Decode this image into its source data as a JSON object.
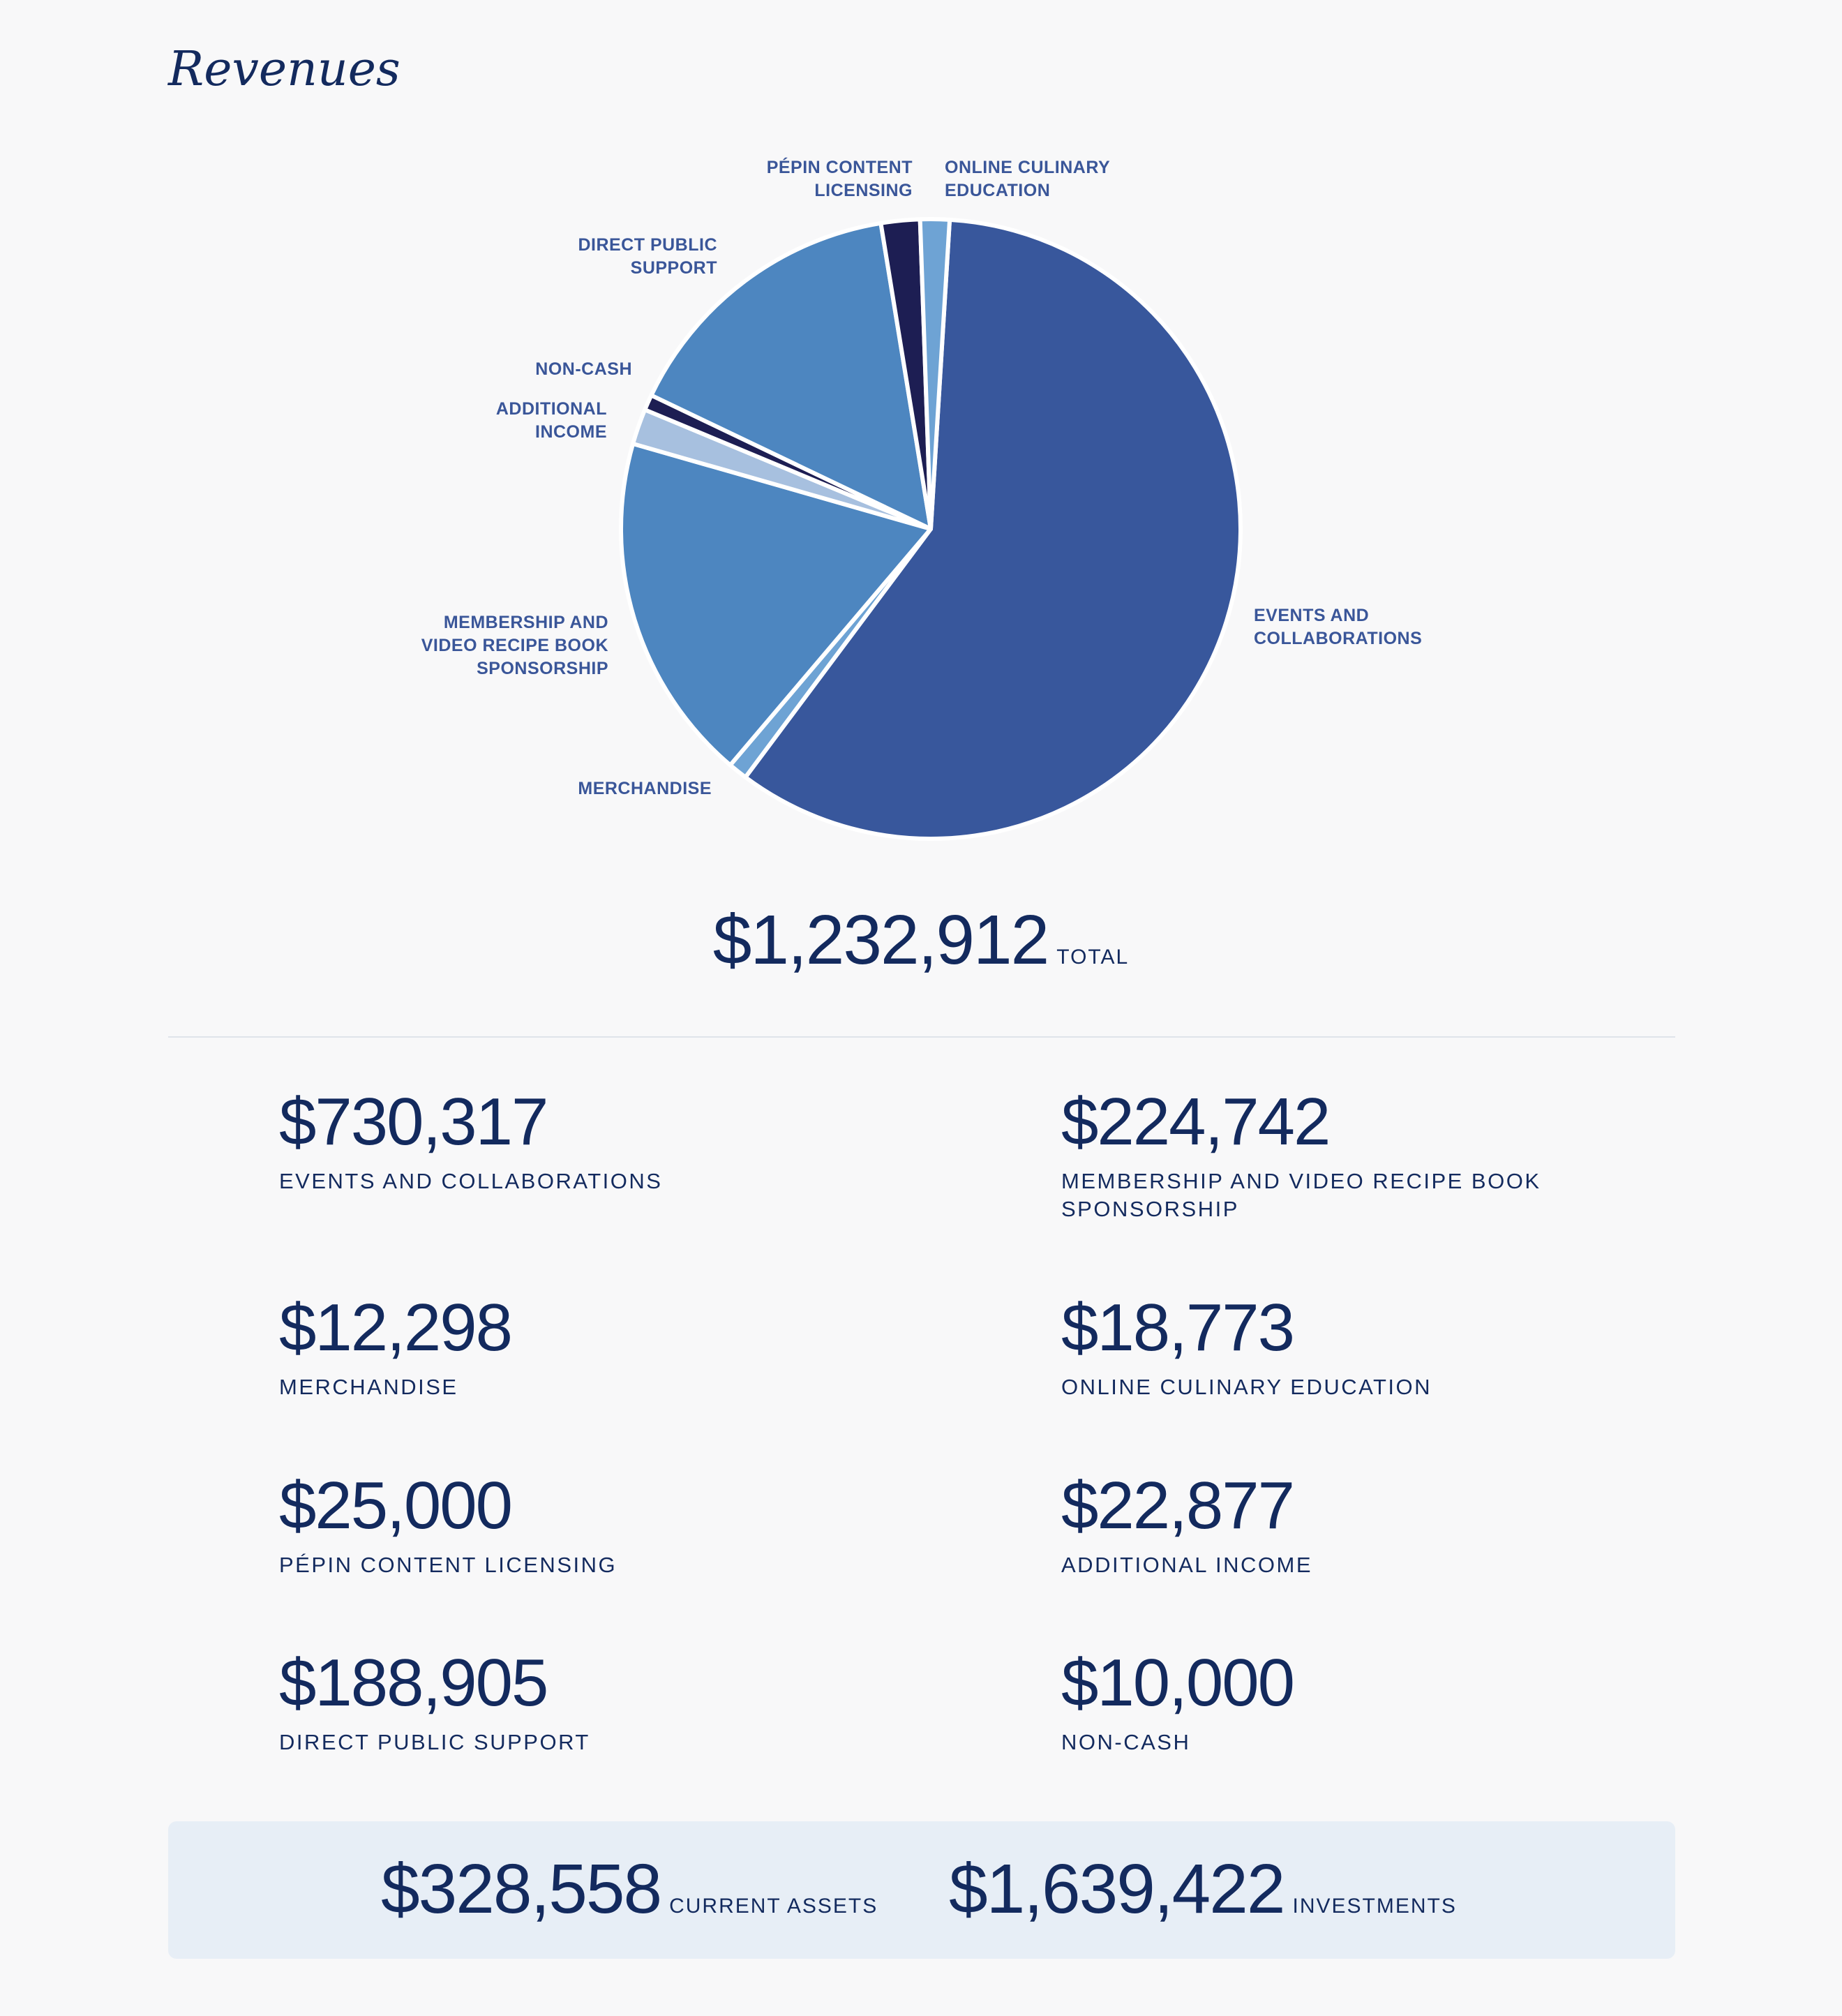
{
  "page": {
    "title": "Revenues"
  },
  "colors": {
    "events": "#38579c",
    "light_blue": "#4d86c0",
    "pale_blue": "#a7c0df",
    "sky_blue": "#6ea3d4",
    "dark_navy": "#1d1e53",
    "text": "#132a5e",
    "label": "#3a5699"
  },
  "chart_data": {
    "type": "pie",
    "title": "",
    "slices": [
      {
        "label": "EVENTS AND COLLABORATIONS",
        "value": 730317,
        "color": "#38579c"
      },
      {
        "label": "MERCHANDISE",
        "value": 12298,
        "color": "#6ea3d4"
      },
      {
        "label": "MEMBERSHIP AND VIDEO RECIPE BOOK SPONSORSHIP",
        "value": 224742,
        "color": "#4d86c0"
      },
      {
        "label": "ADDITIONAL INCOME",
        "value": 22877,
        "color": "#a7c0df"
      },
      {
        "label": "NON-CASH",
        "value": 10000,
        "color": "#1d1e53"
      },
      {
        "label": "DIRECT PUBLIC SUPPORT",
        "value": 188905,
        "color": "#4d86c0"
      },
      {
        "label": "PÉPIN CONTENT LICENSING",
        "value": 25000,
        "color": "#1d1e53"
      },
      {
        "label": "ONLINE CULINARY EDUCATION",
        "value": 18773,
        "color": "#6ea3d4"
      }
    ],
    "labels": {
      "online": "ONLINE CULINARY\nEDUCATION",
      "pepin": "PÉPIN CONTENT\nLICENSING",
      "direct": "DIRECT PUBLIC\nSUPPORT",
      "noncash": "NON-CASH",
      "additional": "ADDITIONAL\nINCOME",
      "membership": "MEMBERSHIP AND\nVIDEO RECIPE BOOK\nSPONSORSHIP",
      "merchandise": "MERCHANDISE",
      "events": "EVENTS AND\nCOLLABORATIONS"
    }
  },
  "total": {
    "value": "$1,232,912",
    "label": "TOTAL"
  },
  "items": [
    {
      "value": "$730,317",
      "label": "EVENTS AND COLLABORATIONS"
    },
    {
      "value": "$224,742",
      "label": "MEMBERSHIP AND VIDEO RECIPE BOOK\nSPONSORSHIP"
    },
    {
      "value": "$12,298",
      "label": "MERCHANDISE"
    },
    {
      "value": "$18,773",
      "label": "ONLINE CULINARY EDUCATION"
    },
    {
      "value": "$25,000",
      "label": "PÉPIN CONTENT LICENSING"
    },
    {
      "value": "$22,877",
      "label": "ADDITIONAL INCOME"
    },
    {
      "value": "$188,905",
      "label": "DIRECT PUBLIC SUPPORT"
    },
    {
      "value": "$10,000",
      "label": "NON-CASH"
    }
  ],
  "assets": {
    "current": {
      "value": "$328,558",
      "label": "CURRENT ASSETS"
    },
    "investments": {
      "value": "$1,639,422",
      "label": "INVESTMENTS"
    }
  }
}
